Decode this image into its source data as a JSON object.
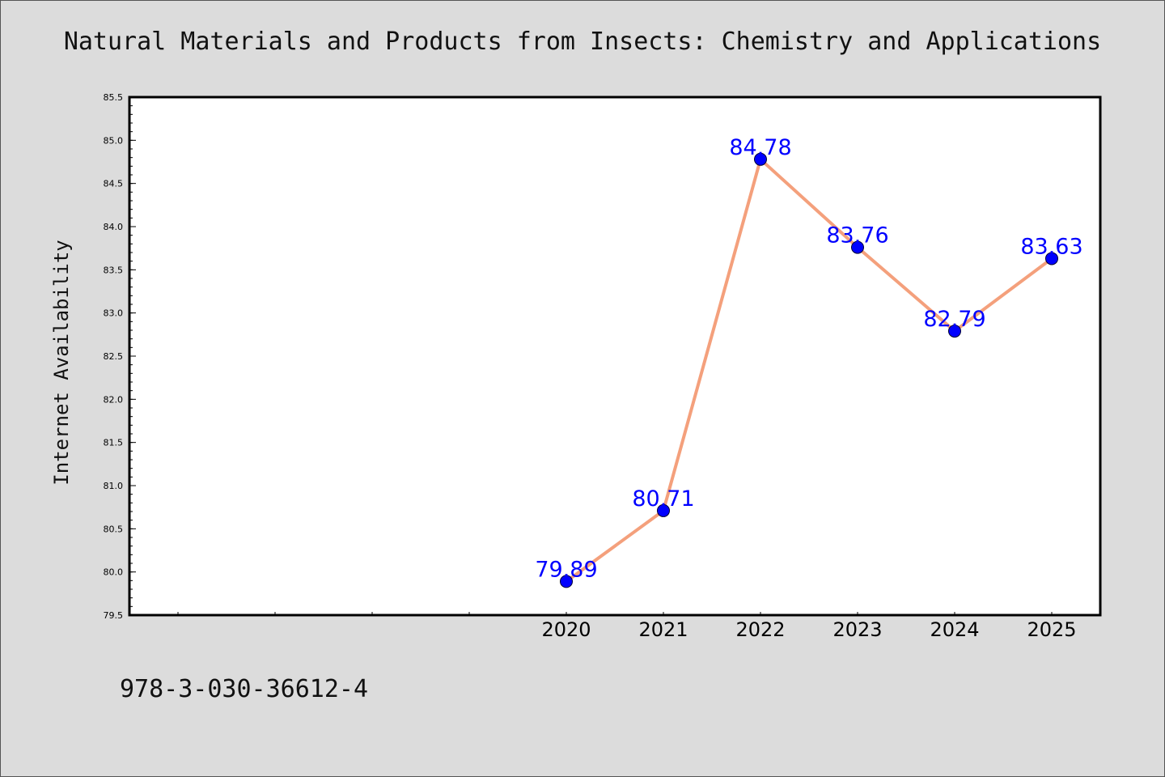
{
  "header": {
    "title": "Natural Materials and Products from Insects: Chemistry and Applications"
  },
  "footer": {
    "isbn": "978-3-030-36612-4"
  },
  "chart_data": {
    "type": "line",
    "title": "Natural Materials and Products from Insects: Chemistry and Applications",
    "xlabel": "",
    "ylabel": "Internet Availability",
    "categories": [
      "2020",
      "2021",
      "2022",
      "2023",
      "2024",
      "2025"
    ],
    "values": [
      79.89,
      80.71,
      84.78,
      83.76,
      82.79,
      83.63
    ],
    "data_labels": [
      "79.89",
      "80.71",
      "84.78",
      "83.76",
      "82.79",
      "83.63"
    ],
    "ylim": [
      79.5,
      85.5
    ],
    "y_ticks": [
      "79.5",
      "80.0",
      "80.5",
      "81.0",
      "81.5",
      "82.0",
      "82.5",
      "83.0",
      "83.5",
      "84.0",
      "84.5",
      "85.0",
      "85.5"
    ],
    "x_slot_count": 10,
    "x_first_category_slot": 4,
    "grid": false,
    "legend": "none",
    "colors": {
      "line": "#f4a07c",
      "marker": "#0000ff",
      "data_label": "#0000ff",
      "plot_background": "#ffffff",
      "page_background": "#dcdcdc"
    }
  }
}
